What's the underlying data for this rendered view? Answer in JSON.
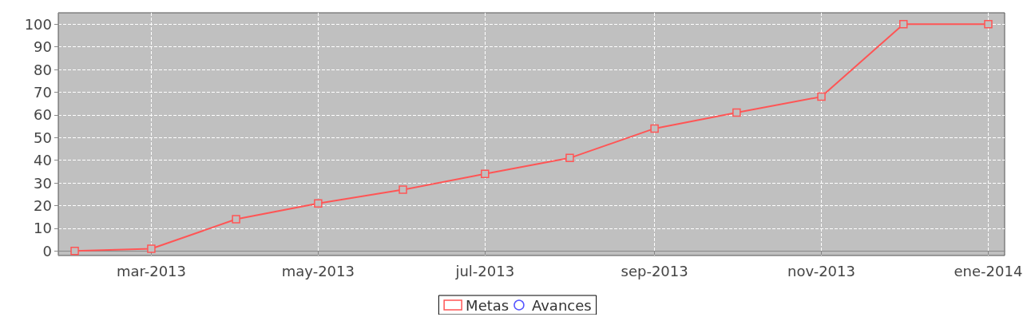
{
  "chart_data": {
    "type": "line",
    "x": [
      "2013-02",
      "2013-03",
      "2013-04",
      "2013-05",
      "2013-06",
      "2013-07",
      "2013-08",
      "2013-09",
      "2013-10",
      "2013-11",
      "2013-12",
      "2014-01"
    ],
    "series": [
      {
        "name": "Metas",
        "color": "#ff5555",
        "marker": "square",
        "values": [
          0,
          1,
          14,
          21,
          27,
          34,
          41,
          54,
          61,
          68,
          100,
          100
        ]
      },
      {
        "name": "Avances",
        "color": "#5555ff",
        "marker": "circle",
        "values": [
          null,
          null,
          null,
          null,
          null,
          null,
          null,
          null,
          null,
          null,
          null,
          null
        ]
      }
    ],
    "xlim": [
      "2013-01-26",
      "2014-01-07"
    ],
    "xticks": [
      {
        "value": "2013-03",
        "label": "mar-2013"
      },
      {
        "value": "2013-05",
        "label": "may-2013"
      },
      {
        "value": "2013-07",
        "label": "jul-2013"
      },
      {
        "value": "2013-09",
        "label": "sep-2013"
      },
      {
        "value": "2013-11",
        "label": "nov-2013"
      },
      {
        "value": "2014-01",
        "label": "ene-2014"
      }
    ],
    "ylim": [
      -2,
      105
    ],
    "yticks": [
      0,
      10,
      20,
      30,
      40,
      50,
      60,
      70,
      80,
      90,
      100
    ],
    "grid": true,
    "legend": "bottom",
    "line_style": "solid"
  }
}
